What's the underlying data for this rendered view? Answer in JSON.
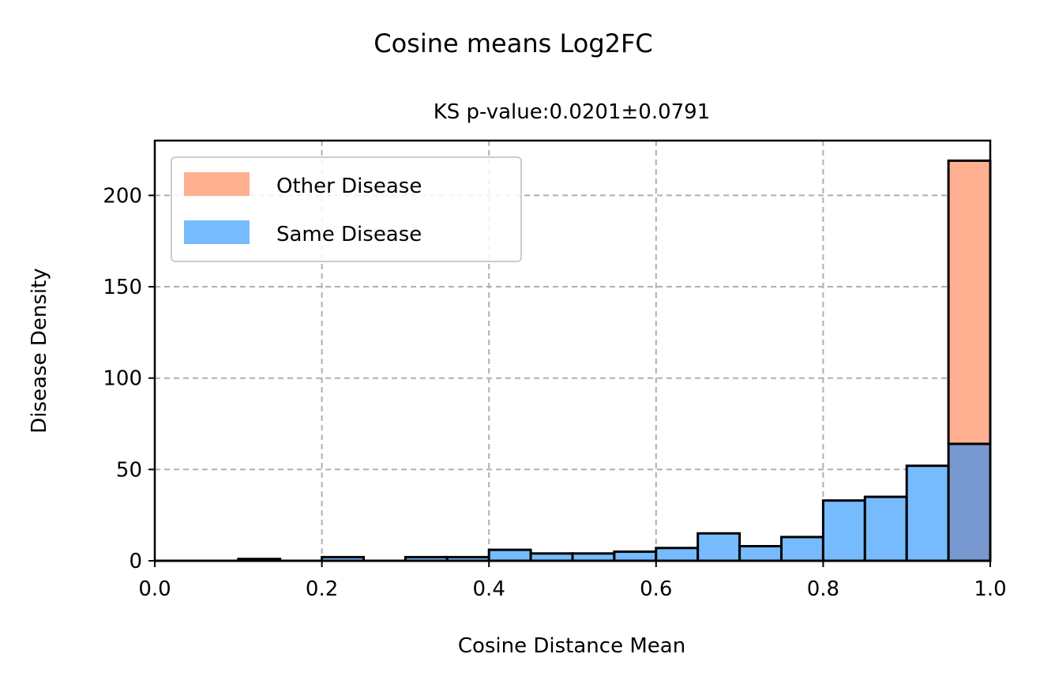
{
  "chart_data": {
    "type": "bar",
    "suptitle": "Cosine means Log2FC",
    "title": "KS p-value:0.0201±0.0791",
    "xlabel": "Cosine Distance Mean",
    "ylabel": "Disease Density",
    "xlim": [
      0.0,
      1.0
    ],
    "ylim": [
      0,
      230
    ],
    "xticks": [
      "0.0",
      "0.2",
      "0.4",
      "0.6",
      "0.8",
      "1.0"
    ],
    "yticks": [
      "0",
      "50",
      "100",
      "150",
      "200"
    ],
    "grid": true,
    "legend_position": "upper-left",
    "bin_edges": [
      0.0,
      0.05,
      0.1,
      0.15,
      0.2,
      0.25,
      0.3,
      0.35,
      0.4,
      0.45,
      0.5,
      0.55,
      0.6,
      0.65,
      0.7,
      0.75,
      0.8,
      0.85,
      0.9,
      0.95,
      1.0
    ],
    "series": [
      {
        "name": "Other Disease",
        "color": "#FFB090",
        "values": [
          0,
          0,
          0,
          0,
          0,
          0,
          0,
          0,
          0,
          0,
          0,
          0,
          0,
          0,
          0,
          0,
          0,
          0,
          0,
          219
        ]
      },
      {
        "name": "Same Disease",
        "color": "#77BBFF",
        "values": [
          0,
          0,
          1,
          0,
          2,
          0,
          2,
          2,
          6,
          4,
          4,
          5,
          7,
          15,
          8,
          13,
          33,
          35,
          52,
          64
        ]
      }
    ]
  }
}
